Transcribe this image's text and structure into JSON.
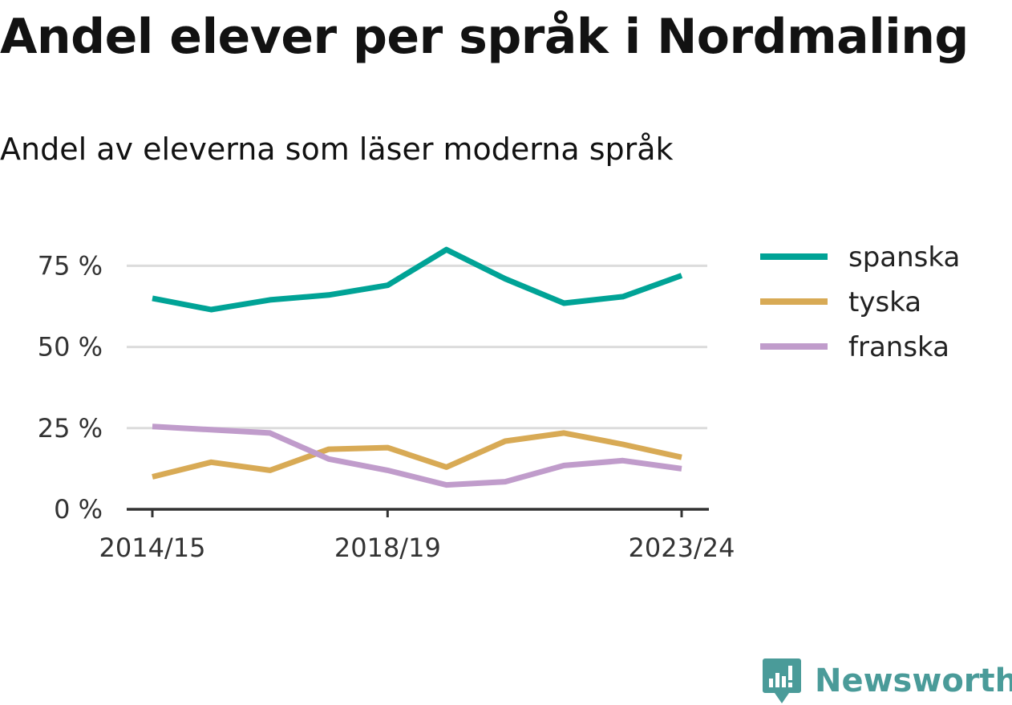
{
  "title": "Andel elever per språk i Nordmaling",
  "subtitle": "Andel av eleverna som läser moderna språk",
  "brand": {
    "name": "Newsworthy",
    "icon": "newsworthy-logo-icon",
    "color": "#4a9b99"
  },
  "chart_data": {
    "type": "line",
    "x": [
      "2014/15",
      "2015/16",
      "2016/17",
      "2017/18",
      "2018/19",
      "2019/20",
      "2020/21",
      "2021/22",
      "2022/23",
      "2023/24"
    ],
    "x_tick_labels": [
      "2014/15",
      "2018/19",
      "2023/24"
    ],
    "y_ticks": [
      0,
      25,
      50,
      75
    ],
    "y_tick_labels": [
      "0 %",
      "25 %",
      "50 %",
      "75 %"
    ],
    "ylim": [
      0,
      82
    ],
    "grid": true,
    "legend_position": "right",
    "series": [
      {
        "name": "spanska",
        "color": "#00a396",
        "values": [
          65,
          61.5,
          64.5,
          66,
          69,
          80,
          71,
          63.5,
          65.5,
          72
        ]
      },
      {
        "name": "tyska",
        "color": "#d8aa55",
        "values": [
          10,
          14.5,
          12,
          18.5,
          19,
          13,
          21,
          23.5,
          20,
          16
        ]
      },
      {
        "name": "franska",
        "color": "#c09ccb",
        "values": [
          25.5,
          24.5,
          23.5,
          15.5,
          12,
          7.5,
          8.5,
          13.5,
          15,
          12.5
        ]
      }
    ]
  }
}
